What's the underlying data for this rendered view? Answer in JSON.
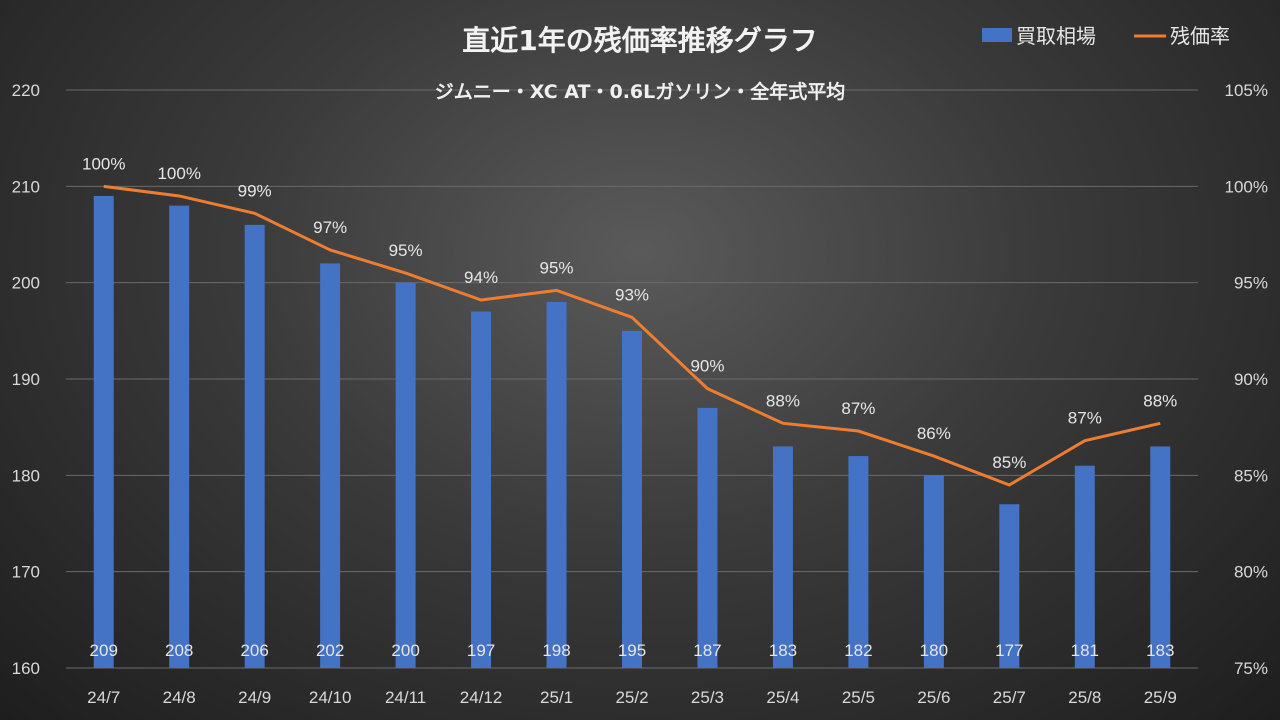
{
  "chart_data": {
    "type": "bar+line",
    "title": "直近1年の残価率推移グラフ",
    "subtitle": "ジムニー・XC AT・0.6Lガソリン・全年式平均",
    "categories": [
      "24/7",
      "24/8",
      "24/9",
      "24/10",
      "24/11",
      "24/12",
      "25/1",
      "25/2",
      "25/3",
      "25/4",
      "25/5",
      "25/6",
      "25/7",
      "25/8",
      "25/9"
    ],
    "series": [
      {
        "name": "買取相場",
        "type": "bar",
        "axis": "left",
        "color": "#4472c4",
        "values": [
          209,
          208,
          206,
          202,
          200,
          197,
          198,
          195,
          187,
          183,
          182,
          180,
          177,
          181,
          183
        ],
        "labels": [
          "209",
          "208",
          "206",
          "202",
          "200",
          "197",
          "198",
          "195",
          "187",
          "183",
          "182",
          "180",
          "177",
          "181",
          "183"
        ]
      },
      {
        "name": "残価率",
        "type": "line",
        "axis": "right",
        "color": "#ed7d31",
        "values": [
          100,
          99.5,
          98.6,
          96.7,
          95.5,
          94.1,
          94.6,
          93.2,
          89.5,
          87.7,
          87.3,
          86.0,
          84.5,
          86.8,
          87.7
        ],
        "labels": [
          "100%",
          "100%",
          "99%",
          "97%",
          "95%",
          "94%",
          "95%",
          "93%",
          "90%",
          "88%",
          "87%",
          "86%",
          "85%",
          "87%",
          "88%"
        ]
      }
    ],
    "y_left": {
      "min": 160,
      "max": 220,
      "ticks": [
        "160",
        "170",
        "180",
        "190",
        "200",
        "210",
        "220"
      ]
    },
    "y_right": {
      "min": 75,
      "max": 105,
      "ticks": [
        "75%",
        "80%",
        "85%",
        "90%",
        "95%",
        "100%",
        "105%"
      ]
    },
    "grid": true,
    "legend_position": "top-right"
  }
}
